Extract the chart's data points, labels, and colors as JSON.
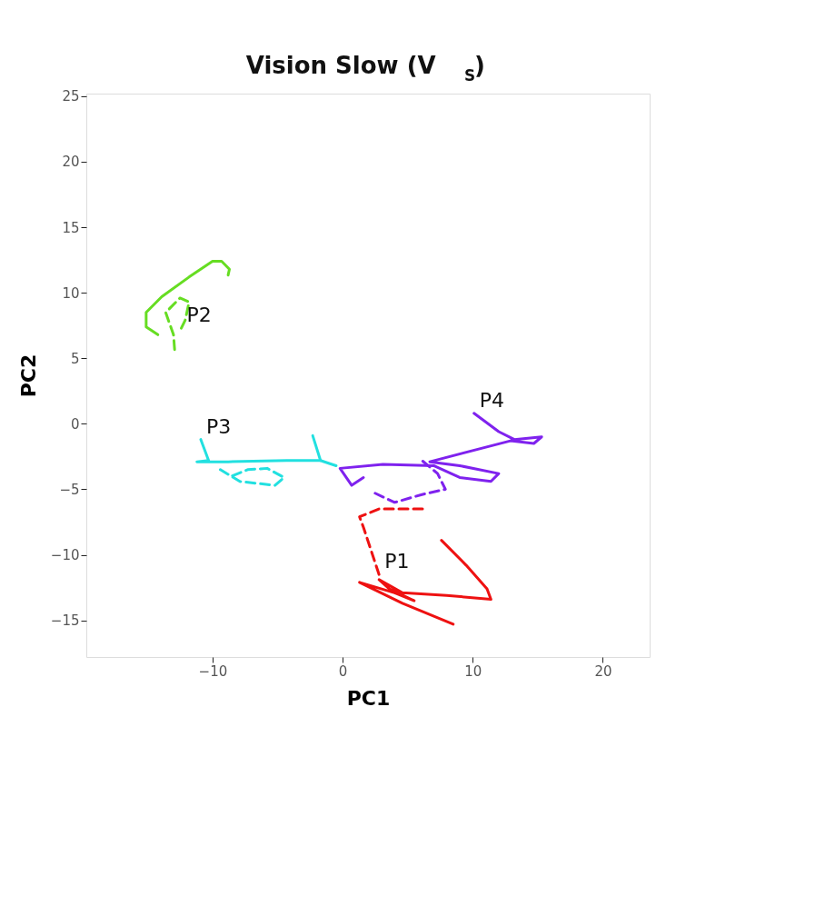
{
  "chart_data": {
    "type": "line",
    "title": "Vision Slow (V$_{S}$)",
    "xlabel": "PC1",
    "ylabel": "PC2",
    "xlim": [
      -19.7,
      23.6
    ],
    "ylim": [
      -17.8,
      25.2
    ],
    "xticks": [
      -10,
      0,
      10,
      20
    ],
    "yticks": [
      -15,
      -10,
      -5,
      0,
      5,
      10,
      15,
      20,
      25
    ],
    "grid": false,
    "marker": "none",
    "series": [
      {
        "color": "#ee1111",
        "line_style": "solid",
        "x": [
          7.6,
          9.5,
          11.1,
          11.4,
          8.0,
          4.6,
          2.8,
          3.6,
          5.5,
          4.0,
          1.3,
          4.6,
          8.5
        ],
        "values": [
          -8.9,
          -10.8,
          -12.6,
          -13.4,
          -13.1,
          -12.9,
          -11.9,
          -12.6,
          -13.5,
          -12.9,
          -12.1,
          -13.7,
          -15.3
        ]
      },
      {
        "name": "P1",
        "color": "#ee1111",
        "line_style": "dashed",
        "x": [
          2.8,
          2.2,
          1.6,
          1.3,
          2.8,
          6.4
        ],
        "values": [
          -11.5,
          -9.7,
          -7.9,
          -7.1,
          -6.5,
          -6.5
        ]
      },
      {
        "color": "#66dd22",
        "line_style": "solid",
        "x": [
          -8.8,
          -8.7,
          -9.3,
          -10.0,
          -11.8,
          -13.9,
          -15.1,
          -15.1,
          -14.2
        ],
        "values": [
          11.35,
          11.8,
          12.4,
          12.4,
          11.2,
          9.7,
          8.5,
          7.4,
          6.8
        ]
      },
      {
        "name": "P2",
        "color": "#66dd22",
        "line_style": "dashed",
        "x": [
          -12.4,
          -12.1,
          -11.8,
          -12.5,
          -13.6,
          -13.0,
          -12.9
        ],
        "values": [
          7.3,
          7.9,
          9.3,
          9.6,
          8.5,
          6.8,
          5.5
        ]
      },
      {
        "name": "P3",
        "color": "#22e0e0",
        "line_style": "solid",
        "x": [
          -10.9,
          -10.3,
          -11.2,
          -8.8,
          -4.3,
          -1.7,
          -0.5
        ],
        "values": [
          -1.2,
          -2.8,
          -2.9,
          -2.9,
          -2.8,
          -2.8,
          -3.2
        ]
      },
      {
        "color": "#22e0e0",
        "line_style": "solid",
        "x": [
          -1.7,
          -2.3
        ],
        "values": [
          -2.8,
          -0.9
        ]
      },
      {
        "color": "#22e0e0",
        "line_style": "dashed",
        "x": [
          -9.4,
          -7.9,
          -5.2,
          -4.5,
          -5.8,
          -7.3,
          -8.8
        ],
        "values": [
          -3.5,
          -4.4,
          -4.7,
          -4.1,
          -3.4,
          -3.5,
          -4.1
        ]
      },
      {
        "name": "P4",
        "color": "#7f22ee",
        "line_style": "solid",
        "x": [
          10.1,
          12.0,
          13.2,
          15.3,
          14.7,
          12.9,
          6.7,
          9.0,
          12.0,
          11.4,
          9.0,
          7.0,
          3.1,
          -0.2,
          0.7,
          1.6
        ],
        "values": [
          0.8,
          -0.6,
          -1.2,
          -1.0,
          -1.5,
          -1.3,
          -2.9,
          -3.2,
          -3.8,
          -4.4,
          -4.1,
          -3.2,
          -3.1,
          -3.4,
          -4.7,
          -4.1
        ]
      },
      {
        "color": "#7f22ee",
        "line_style": "dashed",
        "x": [
          2.5,
          4.0,
          6.1,
          7.9,
          7.3,
          6.1
        ],
        "values": [
          -5.3,
          -6.0,
          -5.4,
          -5.0,
          -3.8,
          -2.8
        ]
      }
    ]
  }
}
